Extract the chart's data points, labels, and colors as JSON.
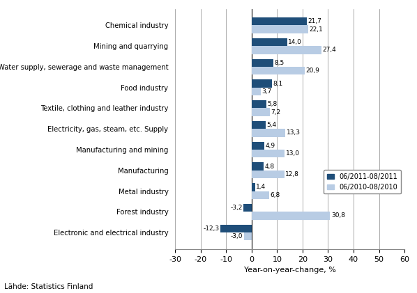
{
  "categories": [
    "Electronic and electrical industry",
    "Forest industry",
    "Metal industry",
    "Manufacturing",
    "Manufacturing and mining",
    "Electricity, gas, steam, etc. Supply",
    "Textile, clothing and leather industry",
    "Food industry",
    "Water supply, sewerage and waste management",
    "Mining and quarrying",
    "Chemical industry"
  ],
  "values_2011": [
    -12.3,
    -3.2,
    1.4,
    4.8,
    4.9,
    5.4,
    5.8,
    8.1,
    8.5,
    14.0,
    21.7
  ],
  "values_2010": [
    -3.0,
    30.8,
    6.8,
    12.8,
    13.0,
    13.3,
    7.2,
    3.7,
    20.9,
    27.4,
    22.1
  ],
  "labels_2011": [
    "-12,3",
    "-3,2",
    "1,4",
    "4,8",
    "4,9",
    "5,4",
    "5,8",
    "8,1",
    "8,5",
    "14,0",
    "21,7"
  ],
  "labels_2010": [
    "-3,0",
    "30,8",
    "6,8",
    "12,8",
    "13,0",
    "13,3",
    "7,2",
    "3,7",
    "20,9",
    "27,4",
    "22,1"
  ],
  "color_2011": "#1F4E79",
  "color_2010": "#B8CCE4",
  "xlabel": "Year-on-year-change, %",
  "legend_2011": "06/2011-08/2011",
  "legend_2010": "06/2010-08/2010",
  "source": "Lähde: Statistics Finland",
  "xlim": [
    -30,
    60
  ],
  "xticks": [
    -30,
    -20,
    -10,
    0,
    10,
    20,
    30,
    40,
    50,
    60
  ]
}
